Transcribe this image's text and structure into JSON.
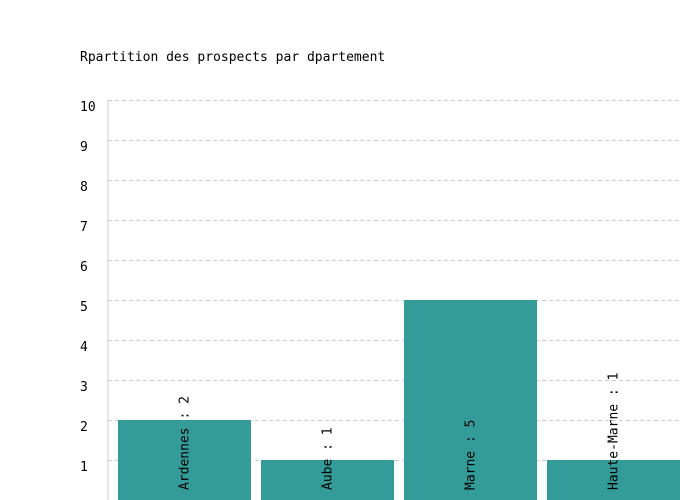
{
  "chart_data": {
    "type": "bar",
    "title": "Rpartition des prospects par dpartement",
    "xlabel": "",
    "ylabel": "",
    "categories": [
      "Ardennes",
      "Aube",
      "Marne",
      "Haute-Marne"
    ],
    "values": [
      2,
      1,
      5,
      1
    ],
    "bar_labels": [
      "Ardennes : 2",
      "Aube : 1",
      "Marne : 5",
      "Haute-Marne : 1"
    ],
    "ylim": [
      0,
      10
    ],
    "yticks": [
      "1",
      "2",
      "3",
      "4",
      "5",
      "6",
      "7",
      "8",
      "9",
      "10"
    ],
    "grid": true,
    "legend": "none",
    "colors": {
      "bar": "#339c99",
      "grid": "#cccccc",
      "axis": "#cccccc"
    }
  }
}
